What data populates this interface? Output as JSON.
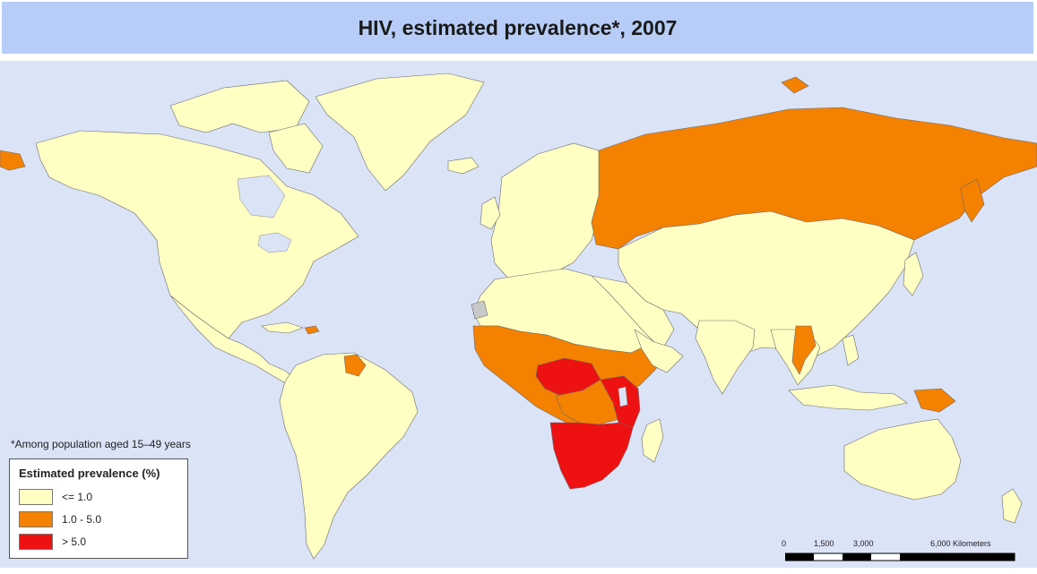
{
  "title": "HIV, estimated prevalence*, 2007",
  "footnote": "*Among population aged 15–49 years",
  "legend": {
    "title": "Estimated prevalence (%)",
    "items": [
      {
        "label": "<= 1.0",
        "color": "#ffffc4"
      },
      {
        "label": "1.0 - 5.0",
        "color": "#f58100"
      },
      {
        "label": "> 5.0",
        "color": "#ee1111"
      }
    ]
  },
  "scale": {
    "ticks": [
      "0",
      "1,500",
      "3,000",
      "6,000 Kilometers"
    ]
  },
  "colors": {
    "ocean": "#dbe3f7",
    "title_bar": "#b7cdf7",
    "low": "#ffffc4",
    "mid": "#f58100",
    "high": "#ee1111",
    "no_data": "#c9c9c9"
  },
  "regions": [
    {
      "name": "Russia",
      "category": "1.0 - 5.0"
    },
    {
      "name": "Papua New Guinea",
      "category": "1.0 - 5.0"
    },
    {
      "name": "Thailand",
      "category": "1.0 - 5.0"
    },
    {
      "name": "Guyana",
      "category": "1.0 - 5.0"
    },
    {
      "name": "Central & West Africa",
      "category": "1.0 - 5.0"
    },
    {
      "name": "Southern Africa",
      "category": "> 5.0"
    }
  ]
}
